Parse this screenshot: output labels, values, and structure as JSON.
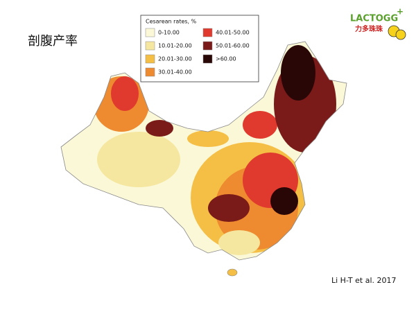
{
  "title": "剖腹产率",
  "legend": {
    "title": "Cesarean rates, %",
    "items": [
      {
        "label": "0-10.00",
        "color": "#fbf8d8"
      },
      {
        "label": "10.01-20.00",
        "color": "#f5e7a0"
      },
      {
        "label": "20.01-30.00",
        "color": "#f5bf45"
      },
      {
        "label": "30.01-40.00",
        "color": "#ee8a30"
      },
      {
        "label": "40.01-50.00",
        "color": "#e03a2e"
      },
      {
        "label": "50.01-60.00",
        "color": "#7a1a19"
      },
      {
        "label": ">60.00",
        "color": "#2a0707"
      }
    ]
  },
  "logo": {
    "brand": "LACTOGG",
    "plus": "+",
    "sub": "力多珠珠"
  },
  "citation": "Li H-T et al. 2017"
}
